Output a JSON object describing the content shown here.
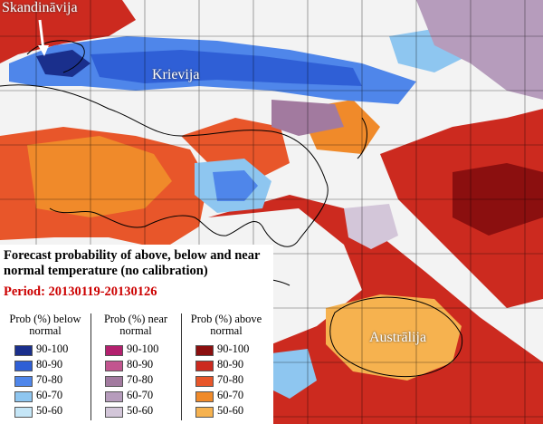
{
  "map_labels": {
    "scandinavia": "Skandināvija",
    "russia": "Krievija",
    "australia": "Austrālija"
  },
  "legend": {
    "title": "Forecast probability of above, below and near normal temperature (no calibration)",
    "period": "Period: 20130119-20130126",
    "columns": [
      {
        "heading": "Prob (%) below normal",
        "items": [
          {
            "label": "90-100",
            "color": "#1a2f8c"
          },
          {
            "label": "80-90",
            "color": "#2f5fd6"
          },
          {
            "label": "70-80",
            "color": "#4f86ea"
          },
          {
            "label": "60-70",
            "color": "#8ec6f0"
          },
          {
            "label": "50-60",
            "color": "#c5e6f7"
          }
        ]
      },
      {
        "heading": "Prob (%) near normal",
        "items": [
          {
            "label": "90-100",
            "color": "#b3206e"
          },
          {
            "label": "80-90",
            "color": "#c2558f"
          },
          {
            "label": "70-80",
            "color": "#a27a9f"
          },
          {
            "label": "60-70",
            "color": "#b69cbc"
          },
          {
            "label": "50-60",
            "color": "#d3c6d9"
          }
        ]
      },
      {
        "heading": "Prob (%) above normal",
        "items": [
          {
            "label": "90-100",
            "color": "#8b0f0f"
          },
          {
            "label": "80-90",
            "color": "#cc2a1f"
          },
          {
            "label": "70-80",
            "color": "#e8562a"
          },
          {
            "label": "60-70",
            "color": "#f08a2a"
          },
          {
            "label": "50-60",
            "color": "#f6b24f"
          }
        ]
      }
    ]
  }
}
